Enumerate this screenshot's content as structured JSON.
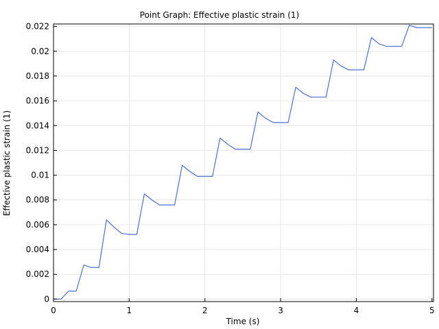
{
  "chart_data": {
    "type": "line",
    "title": "Point Graph: Effective plastic strain (1)",
    "xlabel": "Time (s)",
    "ylabel": "Effective plastic strain (1)",
    "xlim": [
      0,
      5.02
    ],
    "ylim": [
      -0.0002,
      0.0222
    ],
    "xticks": [
      0,
      1,
      2,
      3,
      4,
      5
    ],
    "yticks": [
      0,
      0.002,
      0.004,
      0.006,
      0.008,
      0.01,
      0.012,
      0.014,
      0.016,
      0.018,
      0.02,
      0.022
    ],
    "xtick_labels": [
      "0",
      "1",
      "2",
      "3",
      "4",
      "5"
    ],
    "ytick_labels": [
      "0",
      "0.002",
      "0.004",
      "0.006",
      "0.008",
      "0.01",
      "0.012",
      "0.014",
      "0.016",
      "0.018",
      "0.02",
      "0.022"
    ],
    "grid": true,
    "line_color": "#4a6fdc",
    "series": [
      {
        "x": [
          0,
          0.1,
          0.2,
          0.3,
          0.4,
          0.5,
          0.6,
          0.7,
          0.8,
          0.9,
          1.0,
          1.1,
          1.2,
          1.3,
          1.4,
          1.5,
          1.6,
          1.7,
          1.8,
          1.9,
          2.0,
          2.1,
          2.2,
          2.3,
          2.4,
          2.5,
          2.6,
          2.7,
          2.8,
          2.9,
          3.0,
          3.1,
          3.2,
          3.3,
          3.4,
          3.5,
          3.6,
          3.7,
          3.8,
          3.9,
          4.0,
          4.1,
          4.2,
          4.3,
          4.4,
          4.5,
          4.6,
          4.7,
          4.8,
          4.9,
          5.0
        ],
        "y": [
          0,
          0,
          0.00065,
          0.00065,
          0.00275,
          0.00255,
          0.00255,
          0.0064,
          0.0058,
          0.0053,
          0.00522,
          0.00522,
          0.0085,
          0.008,
          0.0076,
          0.0076,
          0.0076,
          0.0108,
          0.0103,
          0.0099,
          0.0099,
          0.0099,
          0.013,
          0.0125,
          0.0121,
          0.0121,
          0.0121,
          0.0151,
          0.0146,
          0.01425,
          0.01425,
          0.01425,
          0.0171,
          0.0166,
          0.0163,
          0.0163,
          0.0163,
          0.0193,
          0.0188,
          0.0185,
          0.0185,
          0.0185,
          0.0211,
          0.0206,
          0.0204,
          0.0204,
          0.0204,
          0.0221,
          0.0219,
          0.0219,
          0.0219
        ]
      }
    ]
  }
}
